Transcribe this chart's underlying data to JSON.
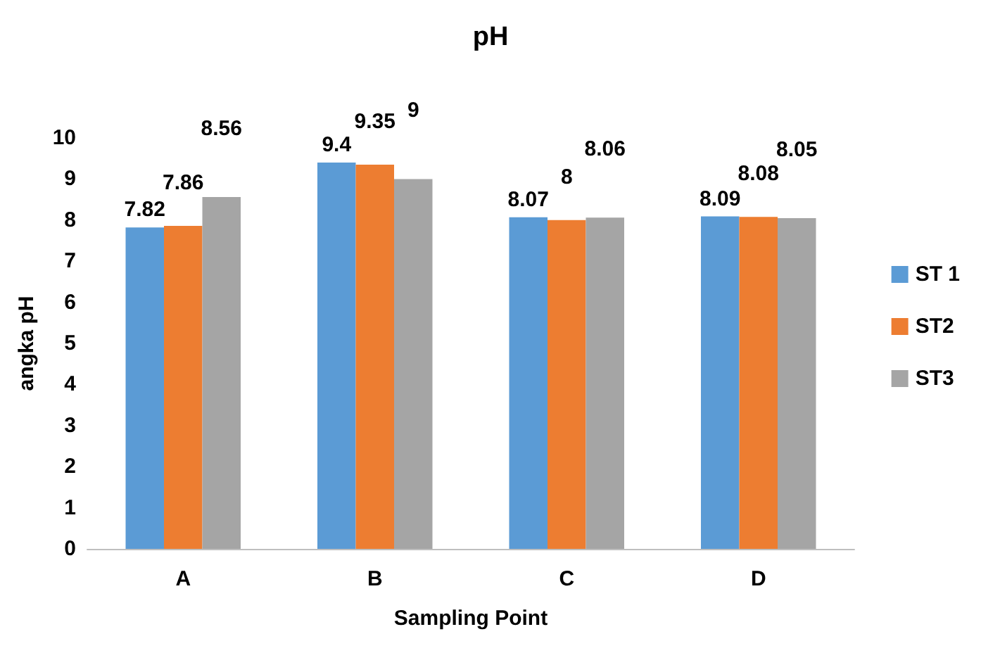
{
  "chart_data": {
    "type": "bar",
    "title": "pH",
    "xlabel": "Sampling Point",
    "ylabel": "angka pH",
    "categories": [
      "A",
      "B",
      "C",
      "D"
    ],
    "series": [
      {
        "name": "ST 1",
        "color": "#5b9bd5",
        "values": [
          7.82,
          9.4,
          8.07,
          8.09
        ]
      },
      {
        "name": "ST2",
        "color": "#ed7d31",
        "values": [
          7.86,
          9.35,
          8,
          8.08
        ]
      },
      {
        "name": "ST3",
        "color": "#a5a5a5",
        "values": [
          8.56,
          9,
          8.06,
          8.05
        ]
      }
    ],
    "ylim": [
      0,
      10
    ],
    "yticks": [
      0,
      1,
      2,
      3,
      4,
      5,
      6,
      7,
      8,
      9,
      10
    ],
    "grid": false,
    "legend": "right",
    "data_labels": true
  }
}
